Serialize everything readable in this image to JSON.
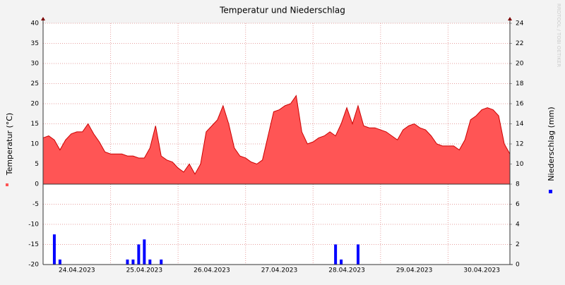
{
  "chart_data": {
    "type": "area-bar",
    "title": "Temperatur und Niederschlag",
    "ylabel": "Temperatur (°C)",
    "y2label": "Niederschlag (mm)",
    "watermark": "RRDTOOL / TOBI OETIKER",
    "categories": [
      null,
      null,
      null,
      null,
      null,
      null,
      "24.04.2023",
      null,
      null,
      null,
      null,
      null,
      null,
      null,
      null,
      null,
      null,
      null,
      "25.04.2023",
      null,
      null,
      null,
      null,
      null,
      null,
      null,
      null,
      null,
      null,
      null,
      "26.04.2023",
      null,
      null,
      null,
      null,
      null,
      null,
      null,
      null,
      null,
      null,
      null,
      "27.04.2023",
      null,
      null,
      null,
      null,
      null,
      null,
      null,
      null,
      null,
      null,
      null,
      "28.04.2023",
      null,
      null,
      null,
      null,
      null,
      null,
      null,
      null,
      null,
      null,
      null,
      "29.04.2023",
      null,
      null,
      null,
      null,
      null,
      null,
      null,
      null,
      null,
      null,
      null,
      "30.04.2023",
      null,
      null,
      null,
      null,
      null
    ],
    "series": [
      {
        "name": "Temperatur",
        "color": "#ff5555",
        "line_color": "#cc0000",
        "values": [
          11.5,
          12,
          11,
          8.5,
          11,
          12.5,
          13,
          13,
          15,
          12.5,
          10.5,
          8,
          7.5,
          7.5,
          7.5,
          7,
          7,
          6.5,
          6.5,
          9,
          14.5,
          7,
          6,
          5.5,
          4,
          3,
          5,
          2.5,
          5,
          13,
          14.5,
          16,
          19.5,
          15,
          9,
          7,
          6.5,
          5.5,
          5,
          6,
          12,
          18,
          18.5,
          19.5,
          20,
          22,
          13,
          10,
          10.5,
          11.5,
          12,
          13,
          12,
          15,
          19,
          15,
          19.5,
          14.5,
          14,
          14,
          13.5,
          13,
          12,
          11,
          13.5,
          14.5,
          15,
          14,
          13.5,
          12,
          10,
          9.5,
          9.5,
          9.5,
          8.5,
          11,
          16,
          17,
          18.5,
          19,
          18.5,
          17,
          10,
          7.5
        ]
      },
      {
        "name": "Niederschlag",
        "color": "#0000ff",
        "axis": "y2",
        "values": [
          0,
          0,
          3,
          0.5,
          0,
          0,
          0,
          0,
          0,
          0,
          0,
          0,
          0,
          0,
          0,
          0.5,
          0.5,
          2,
          2.5,
          0.5,
          0,
          0.5,
          0,
          0,
          0,
          0,
          0,
          0,
          0,
          0,
          0,
          0,
          0,
          0,
          0,
          0,
          0,
          0,
          0,
          0,
          0,
          0,
          0,
          0,
          0,
          0,
          0,
          0,
          0,
          0,
          0,
          0,
          2,
          0.5,
          0,
          0,
          2,
          0,
          0,
          0,
          0,
          0,
          0,
          0,
          0,
          0,
          0,
          0,
          0,
          0,
          0,
          0,
          0,
          0,
          0,
          0,
          0,
          0,
          0,
          0,
          0,
          0,
          0,
          0
        ]
      }
    ],
    "ylim": [
      -20,
      40
    ],
    "yticks": [
      -20,
      -15,
      -10,
      -5,
      0,
      5,
      10,
      15,
      20,
      25,
      30,
      35,
      40
    ],
    "y2lim": [
      0,
      24
    ],
    "y2ticks": [
      0,
      2,
      4,
      6,
      8,
      10,
      12,
      14,
      16,
      18,
      20,
      22,
      24
    ],
    "grid": true
  }
}
